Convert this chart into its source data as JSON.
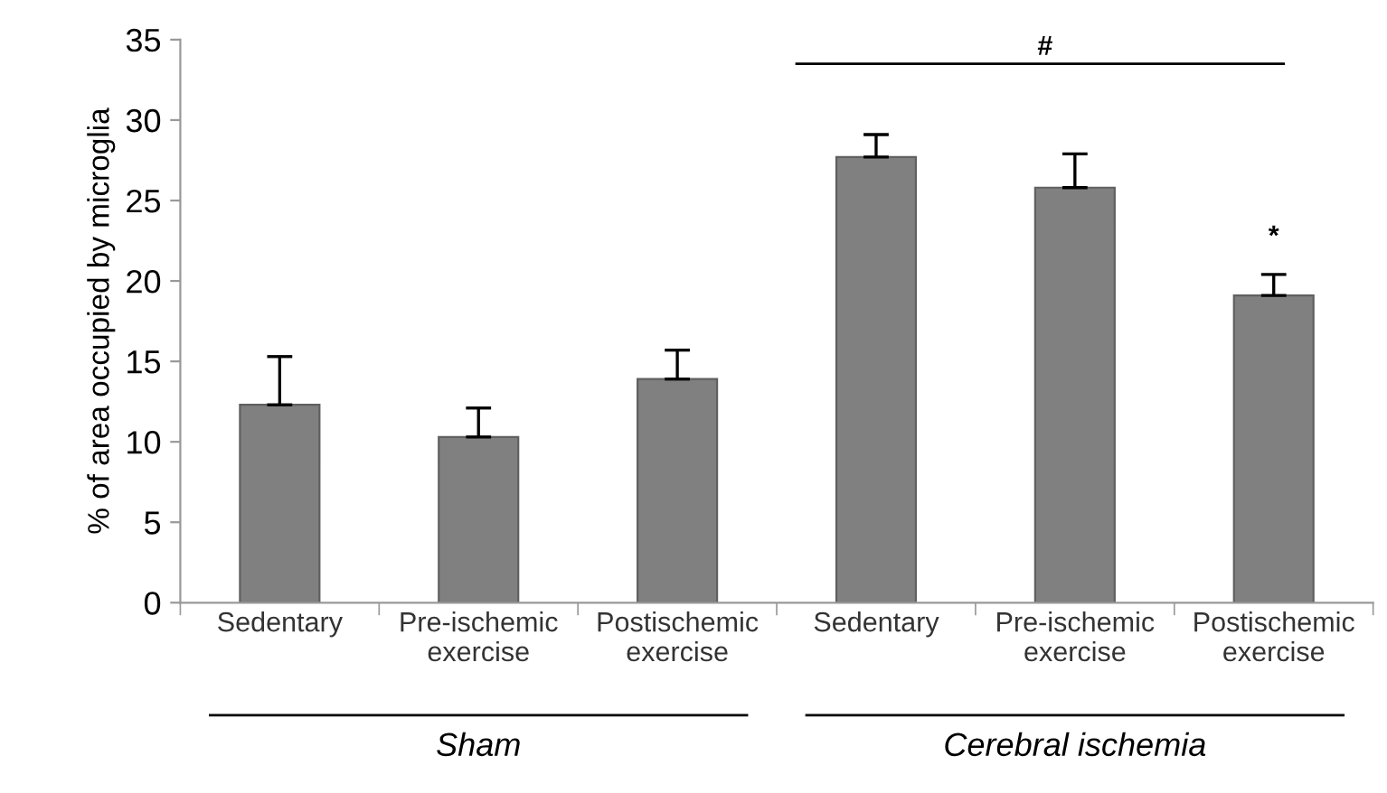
{
  "chart_data": {
    "type": "bar",
    "ylabel": "% of area occupied by microglia",
    "categories": [
      "Sedentary",
      "Pre-ischemic\nexercise",
      "Postischemic\nexercise",
      "Sedentary",
      "Pre-ischemic\nexercise",
      "Postischemic\nexercise"
    ],
    "series": [
      {
        "color": "#808080",
        "values": [
          12.3,
          10.3,
          13.9,
          27.7,
          25.8,
          19.1
        ],
        "errors": [
          [
            12.3,
            15.3
          ],
          [
            10.3,
            12.1
          ],
          [
            13.9,
            15.7
          ],
          [
            27.7,
            29.1
          ],
          [
            25.8,
            27.9
          ],
          [
            19.1,
            20.4
          ]
        ]
      }
    ],
    "ylim": [
      0,
      35
    ],
    "yticks": [
      0,
      5,
      10,
      15,
      20,
      25,
      30,
      35
    ],
    "grid": false,
    "legend": false,
    "annotations": [
      "#",
      "*",
      "Sham",
      "Cerebral ischemia"
    ]
  }
}
